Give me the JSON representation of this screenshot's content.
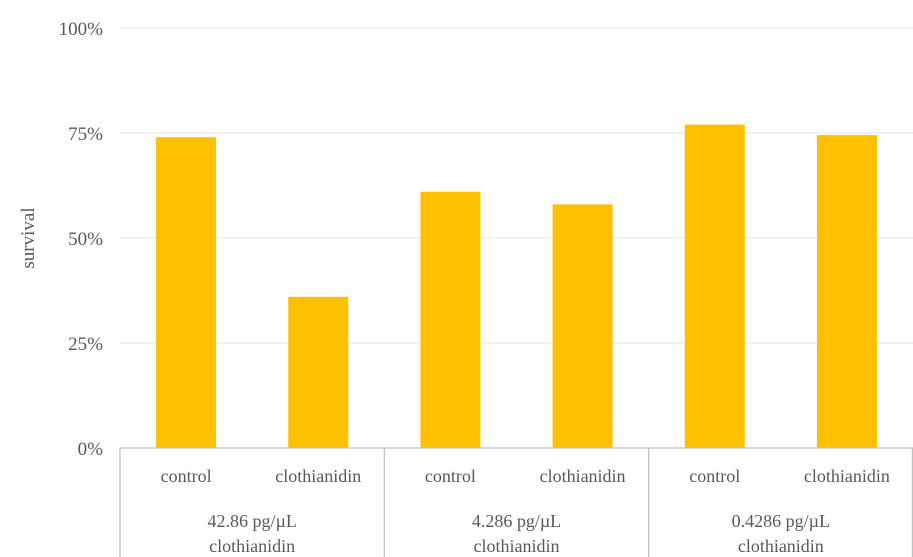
{
  "chart_data": {
    "type": "bar",
    "ylabel": "survival",
    "ylim": [
      0,
      100
    ],
    "y_ticks": [
      "0%",
      "25%",
      "50%",
      "75%",
      "100%"
    ],
    "y_tick_values": [
      0,
      25,
      50,
      75,
      100
    ],
    "grid": true,
    "bar_color": "#FFC000",
    "groups": [
      {
        "label_line1": "42.86 pg/µL",
        "label_line2": "clothianidin",
        "categories": [
          "control",
          "clothianidin"
        ]
      },
      {
        "label_line1": "4.286 pg/µL",
        "label_line2": "clothianidin",
        "categories": [
          "control",
          "clothianidin"
        ]
      },
      {
        "label_line1": "0.4286 pg/µL",
        "label_line2": "clothianidin",
        "categories": [
          "control",
          "clothianidin"
        ]
      }
    ],
    "categories": [
      "control",
      "clothianidin",
      "control",
      "clothianidin",
      "control",
      "clothianidin"
    ],
    "values": [
      74,
      36,
      61,
      58,
      77,
      74.5
    ]
  }
}
